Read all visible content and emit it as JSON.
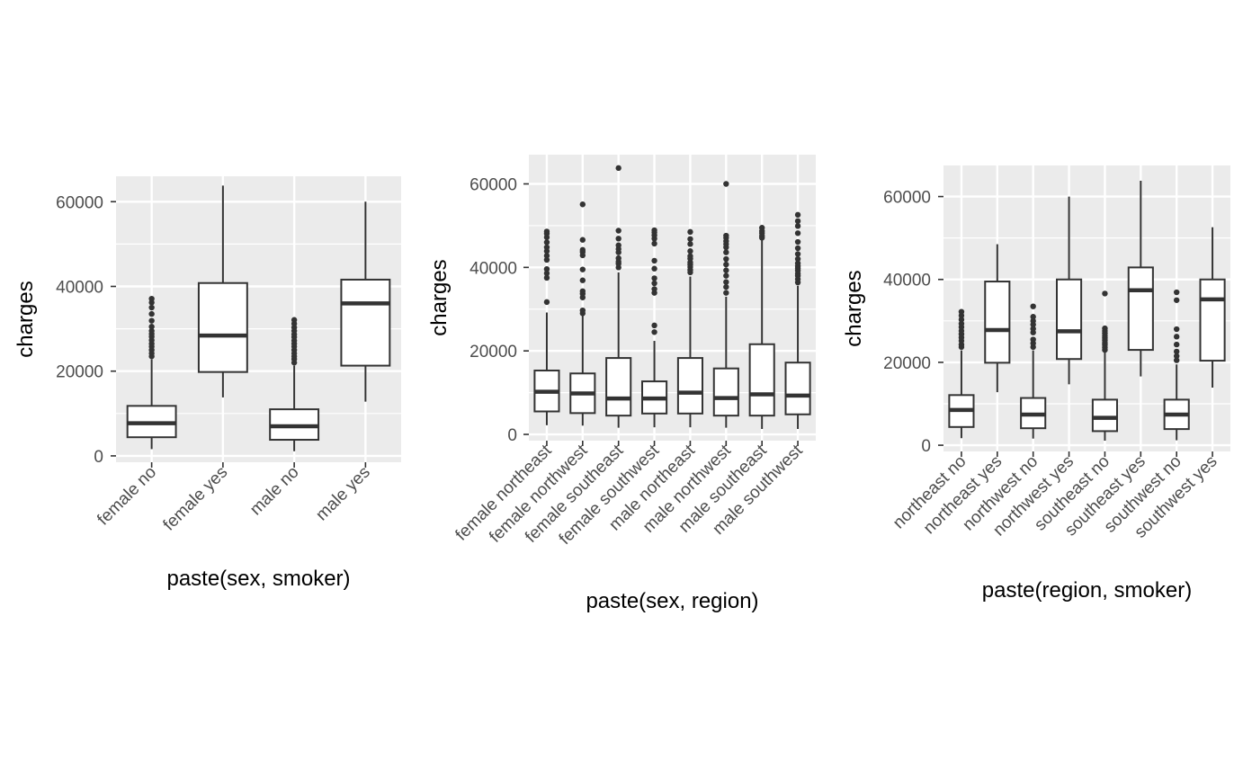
{
  "chart_data": [
    {
      "type": "boxplot",
      "xlabel": "paste(sex, smoker)",
      "ylabel": "charges",
      "ylim": [
        -1500,
        66000
      ],
      "yticks": [
        0,
        20000,
        40000,
        60000
      ],
      "yticklabels": [
        "0",
        "20000",
        "40000",
        "60000"
      ],
      "categories": [
        "female no",
        "female yes",
        "male no",
        "male yes"
      ],
      "boxes": [
        {
          "whisker_low": 1600,
          "q1": 4400,
          "median": 7700,
          "q3": 11800,
          "whisker_high": 22800,
          "outliers": [
            23500,
            24200,
            25000,
            25800,
            26500,
            27300,
            28100,
            28800,
            29500,
            30500,
            31900,
            33500,
            35000,
            36200,
            37100
          ]
        },
        {
          "whisker_low": 13800,
          "q1": 19800,
          "median": 28400,
          "q3": 40800,
          "whisker_high": 63800,
          "outliers": []
        },
        {
          "whisker_low": 1100,
          "q1": 3800,
          "median": 7000,
          "q3": 11000,
          "whisker_high": 21300,
          "outliers": [
            22000,
            22800,
            23500,
            24200,
            25000,
            25800,
            26500,
            27200,
            28000,
            28700,
            29500,
            30300,
            31200,
            32100
          ]
        },
        {
          "whisker_low": 12800,
          "q1": 21300,
          "median": 36000,
          "q3": 41600,
          "whisker_high": 60000,
          "outliers": []
        }
      ]
    },
    {
      "type": "boxplot",
      "xlabel": "paste(sex, region)",
      "ylabel": "charges",
      "ylim": [
        -1500,
        67000
      ],
      "yticks": [
        0,
        20000,
        40000,
        60000
      ],
      "yticklabels": [
        "0",
        "20000",
        "40000",
        "60000"
      ],
      "categories": [
        "female northeast",
        "female northwest",
        "female southeast",
        "female southwest",
        "male northeast",
        "male northwest",
        "male southeast",
        "male southwest"
      ],
      "boxes": [
        {
          "whisker_low": 2200,
          "q1": 5500,
          "median": 10200,
          "q3": 15300,
          "whisker_high": 29200,
          "outliers": [
            31700,
            37500,
            38600,
            39600,
            41800,
            42800,
            43900,
            44800,
            46000,
            47200,
            48100,
            48600
          ]
        },
        {
          "whisker_low": 2100,
          "q1": 5100,
          "median": 9800,
          "q3": 14600,
          "whisker_high": 28500,
          "outliers": [
            29000,
            29700,
            32800,
            33700,
            34300,
            36900,
            39500,
            42900,
            43700,
            44200,
            46600,
            55100
          ]
        },
        {
          "whisker_low": 1600,
          "q1": 4500,
          "median": 8600,
          "q3": 18300,
          "whisker_high": 38800,
          "outliers": [
            40000,
            40900,
            41400,
            42200,
            43600,
            44400,
            45300,
            46900,
            48800,
            63800
          ]
        },
        {
          "whisker_low": 1700,
          "q1": 5000,
          "median": 8600,
          "q3": 12700,
          "whisker_high": 22400,
          "outliers": [
            24500,
            26100,
            33900,
            34800,
            36200,
            37400,
            39700,
            41600,
            45700,
            46900,
            47700,
            48400,
            48900
          ]
        },
        {
          "whisker_low": 1700,
          "q1": 5000,
          "median": 10000,
          "q3": 18300,
          "whisker_high": 37800,
          "outliers": [
            38800,
            39400,
            40100,
            40700,
            41200,
            42100,
            42700,
            43900,
            45600,
            46800,
            48500
          ]
        },
        {
          "whisker_low": 1600,
          "q1": 4500,
          "median": 8700,
          "q3": 15800,
          "whisker_high": 33000,
          "outliers": [
            33900,
            35300,
            36500,
            38000,
            39300,
            40700,
            42000,
            43600,
            44800,
            45600,
            46300,
            47100,
            47600,
            60000
          ]
        },
        {
          "whisker_low": 1300,
          "q1": 4500,
          "median": 9600,
          "q3": 21600,
          "whisker_high": 46600,
          "outliers": [
            47100,
            47500,
            48200,
            48700,
            49500
          ]
        },
        {
          "whisker_low": 1300,
          "q1": 4800,
          "median": 9300,
          "q3": 17200,
          "whisker_high": 35600,
          "outliers": [
            36400,
            37200,
            38000,
            38500,
            39200,
            39800,
            40300,
            41000,
            42000,
            43200,
            44600,
            46100,
            48200,
            49900,
            51100,
            52600
          ]
        }
      ]
    },
    {
      "type": "boxplot",
      "xlabel": "paste(region, smoker)",
      "ylabel": "charges",
      "ylim": [
        -1500,
        67500
      ],
      "yticks": [
        0,
        20000,
        40000,
        60000
      ],
      "yticklabels": [
        "0",
        "20000",
        "40000",
        "60000"
      ],
      "categories": [
        "northeast no",
        "northeast yes",
        "northwest no",
        "northwest yes",
        "southeast no",
        "southeast yes",
        "southwest no",
        "southwest yes"
      ],
      "boxes": [
        {
          "whisker_low": 1700,
          "q1": 4400,
          "median": 8500,
          "q3": 12100,
          "whisker_high": 22900,
          "outliers": [
            23700,
            24300,
            25200,
            26000,
            26800,
            27600,
            28500,
            29300,
            30300,
            31300,
            32200
          ]
        },
        {
          "whisker_low": 12800,
          "q1": 19900,
          "median": 27800,
          "q3": 39500,
          "whisker_high": 48500,
          "outliers": []
        },
        {
          "whisker_low": 1600,
          "q1": 4100,
          "median": 7400,
          "q3": 11400,
          "whisker_high": 22900,
          "outliers": [
            23700,
            24600,
            25500,
            27200,
            28100,
            29100,
            30000,
            31000,
            33500
          ]
        },
        {
          "whisker_low": 14700,
          "q1": 20800,
          "median": 27500,
          "q3": 40000,
          "whisker_high": 60000,
          "outliers": []
        },
        {
          "whisker_low": 1100,
          "q1": 3400,
          "median": 6600,
          "q3": 11000,
          "whisker_high": 22400,
          "outliers": [
            23000,
            23600,
            24200,
            24700,
            25300,
            25900,
            26400,
            27000,
            27600,
            28200,
            36600
          ]
        },
        {
          "whisker_low": 16600,
          "q1": 23000,
          "median": 37400,
          "q3": 42900,
          "whisker_high": 63800,
          "outliers": []
        },
        {
          "whisker_low": 1200,
          "q1": 3900,
          "median": 7400,
          "q3": 11000,
          "whisker_high": 19500,
          "outliers": [
            20500,
            21500,
            22600,
            24300,
            26200,
            28000,
            35000,
            36900
          ]
        },
        {
          "whisker_low": 13900,
          "q1": 20400,
          "median": 35200,
          "q3": 40000,
          "whisker_high": 52600,
          "outliers": []
        }
      ]
    }
  ]
}
